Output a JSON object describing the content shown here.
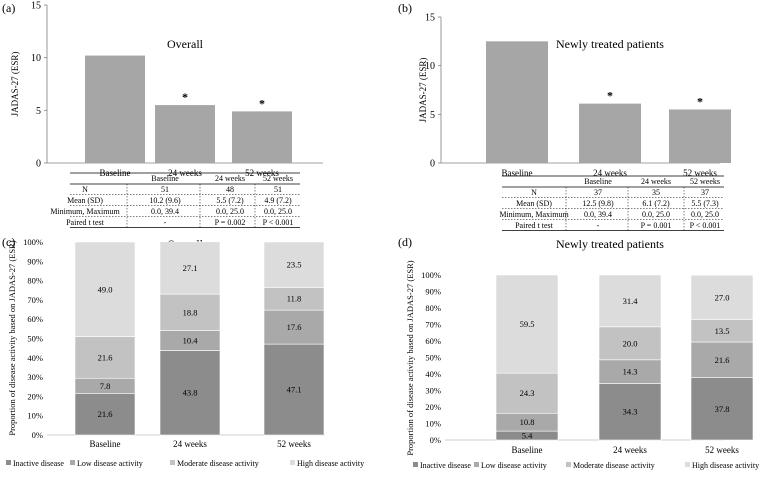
{
  "panels": {
    "a": {
      "label": "(a)"
    },
    "b": {
      "label": "(b)"
    },
    "c": {
      "label": "(c)"
    },
    "d": {
      "label": "(d)"
    }
  },
  "chart_data": [
    {
      "id": "a",
      "type": "bar",
      "title": "Overall",
      "ylabel": "JADAS-27 (ESR)",
      "categories": [
        "Baseline",
        "24 weeks",
        "52 weeks"
      ],
      "values": [
        10.2,
        5.5,
        4.9
      ],
      "significance": [
        "",
        "*",
        "*"
      ],
      "ylim": [
        0,
        15
      ],
      "yticks": [
        0,
        5,
        10,
        15
      ],
      "bar_color": "#a6a6a6",
      "table": {
        "header": [
          "",
          "Baseline",
          "24 weeks",
          "52 weeks"
        ],
        "rows": [
          [
            "N",
            "51",
            "48",
            "51"
          ],
          [
            "Mean (SD)",
            "10.2 (9.6)",
            "5.5 (7.2)",
            "4.9 (7.2)"
          ],
          [
            "Minimum, Maximum",
            "0.0, 39.4",
            "0.0, 25.0",
            "0.0, 25.0"
          ],
          [
            "Paired t test",
            "-",
            "P = 0.002",
            "P < 0.001"
          ]
        ]
      }
    },
    {
      "id": "b",
      "type": "bar",
      "title": "Newly treated patients",
      "ylabel": "JADAS-27 (ESR)",
      "categories": [
        "Baseline",
        "24 weeks",
        "52 weeks"
      ],
      "values": [
        12.5,
        6.1,
        5.5
      ],
      "significance": [
        "",
        "*",
        "*"
      ],
      "ylim": [
        0,
        15
      ],
      "yticks": [
        0,
        5,
        10,
        15
      ],
      "bar_color": "#a6a6a6",
      "table": {
        "header": [
          "",
          "Baseline",
          "24 weeks",
          "52 weeks"
        ],
        "rows": [
          [
            "N",
            "37",
            "35",
            "37"
          ],
          [
            "Mean (SD)",
            "12.5 (9.8)",
            "6.1 (7.2)",
            "5.5 (7.3)"
          ],
          [
            "Minimum, Maximum",
            "0.0, 39.4",
            "0.0, 25.0",
            "0.0, 25.0"
          ],
          [
            "Paired t test",
            "-",
            "P = 0.001",
            "P < 0.001"
          ]
        ]
      }
    },
    {
      "id": "c",
      "type": "bar",
      "stacked": true,
      "title": "Overall",
      "ylabel": "Proportion of disease activity based on JADAS-27 (ESR)",
      "categories": [
        "Baseline",
        "24 weeks",
        "52 weeks"
      ],
      "ylim": [
        0,
        100
      ],
      "yticks": [
        "0%",
        "10%",
        "20%",
        "30%",
        "40%",
        "50%",
        "60%",
        "70%",
        "80%",
        "90%",
        "100%"
      ],
      "series": [
        {
          "name": "Inactive disease",
          "color": "#8c8c8c",
          "values": [
            21.6,
            43.8,
            47.1
          ],
          "labels": [
            "21.6",
            "43.8",
            "47.1"
          ]
        },
        {
          "name": "Low disease activity",
          "color": "#a9a9a9",
          "values": [
            7.8,
            10.4,
            17.6
          ],
          "labels": [
            "7.8",
            "10.4",
            "17.6"
          ]
        },
        {
          "name": "Moderate disease activity",
          "color": "#c2c2c2",
          "values": [
            21.6,
            18.8,
            11.8
          ],
          "labels": [
            "21.6",
            "18.8",
            "11.8"
          ]
        },
        {
          "name": "High disease activity",
          "color": "#dcdcdc",
          "values": [
            49.0,
            27.1,
            23.5
          ],
          "labels": [
            "49.0",
            "27.1",
            "23.5"
          ]
        }
      ]
    },
    {
      "id": "d",
      "type": "bar",
      "stacked": true,
      "title": "Newly treated patients",
      "ylabel": "Proportion of disease activity based on JADAS-27 (ESR)",
      "categories": [
        "Baseline",
        "24 weeks",
        "52 weeks"
      ],
      "ylim": [
        0,
        100
      ],
      "yticks": [
        "0%",
        "10%",
        "20%",
        "30%",
        "40%",
        "50%",
        "60%",
        "70%",
        "80%",
        "90%",
        "100%"
      ],
      "series": [
        {
          "name": "Inactive disease",
          "color": "#8c8c8c",
          "values": [
            5.4,
            34.3,
            37.8
          ],
          "labels": [
            "5.4",
            "34.3",
            "37.8"
          ]
        },
        {
          "name": "Low disease activity",
          "color": "#a9a9a9",
          "values": [
            10.8,
            14.3,
            21.6
          ],
          "labels": [
            "10.8",
            "14.3",
            "21.6"
          ]
        },
        {
          "name": "Moderate disease activity",
          "color": "#c2c2c2",
          "values": [
            24.3,
            20.0,
            13.5
          ],
          "labels": [
            "24.3",
            "20.0",
            "13.5"
          ]
        },
        {
          "name": "High disease activity",
          "color": "#dcdcdc",
          "values": [
            59.5,
            31.4,
            27.0
          ],
          "labels": [
            "59.5",
            "31.4",
            "27.0"
          ]
        }
      ]
    }
  ]
}
